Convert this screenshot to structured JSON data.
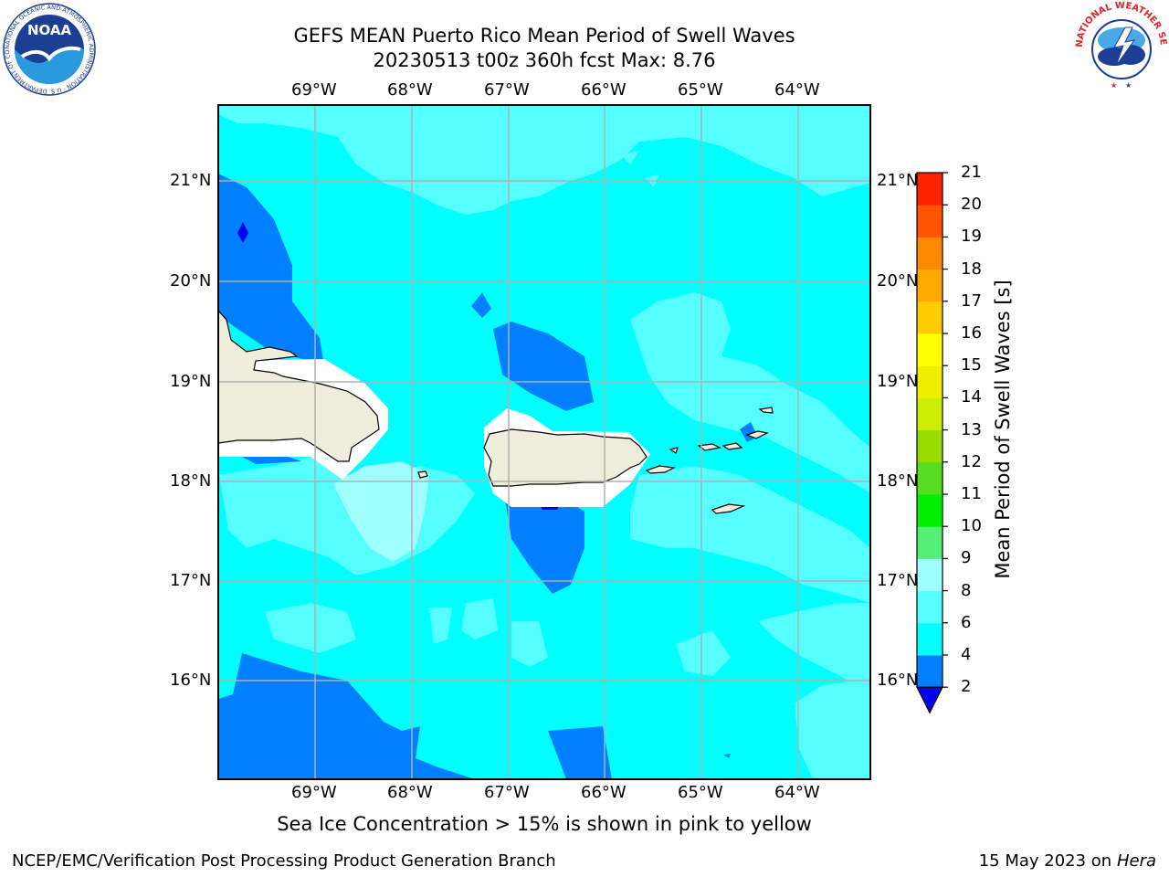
{
  "title": {
    "line1": "GEFS MEAN Puerto Rico Mean Period of Swell Waves",
    "line2": "20230513 t00z 360h fcst   Max: 8.76"
  },
  "map": {
    "lon_labels": [
      "69°W",
      "68°W",
      "67°W",
      "66°W",
      "65°W",
      "64°W"
    ],
    "lat_labels": [
      "21°N",
      "20°N",
      "19°N",
      "18°N",
      "17°N",
      "16°N"
    ],
    "colors": {
      "band_2_4": "#0080ff",
      "band_4_6": "#00ffff",
      "band_6_8": "#55ffff",
      "band_8_9": "#a0ffff",
      "below_2": "#0000ee",
      "land": "#eeeedc",
      "grid": "#b0b0b0"
    }
  },
  "colorbar": {
    "label": "Mean Period of Swell Waves [s]",
    "ticks": [
      "2",
      "4",
      "6",
      "8",
      "9",
      "10",
      "11",
      "12",
      "13",
      "14",
      "15",
      "16",
      "17",
      "18",
      "19",
      "20",
      "21"
    ],
    "colors": [
      "#0080ff",
      "#00ffff",
      "#55ffff",
      "#a0ffff",
      "#55ee77",
      "#00ee00",
      "#55dd22",
      "#99dd00",
      "#ccee00",
      "#eeee00",
      "#ffff00",
      "#ffcc00",
      "#ffaa00",
      "#ff8800",
      "#ff5500",
      "#ff2200"
    ]
  },
  "note": "Sea Ice Concentration > 15% is shown in pink to yellow",
  "footer": {
    "left": "NCEP/EMC/Verification Post Processing Product Generation Branch",
    "right_date": "15 May 2023 on",
    "right_machine": "Hera"
  },
  "logos": {
    "noaa_text": "NOAA",
    "noaa_ring": "NATIONAL OCEANIC AND ATMOSPHERIC ADMINISTRATION · U.S. DEPARTMENT OF COMMERCE",
    "nws_ring": "NATIONAL WEATHER SERVICE"
  }
}
